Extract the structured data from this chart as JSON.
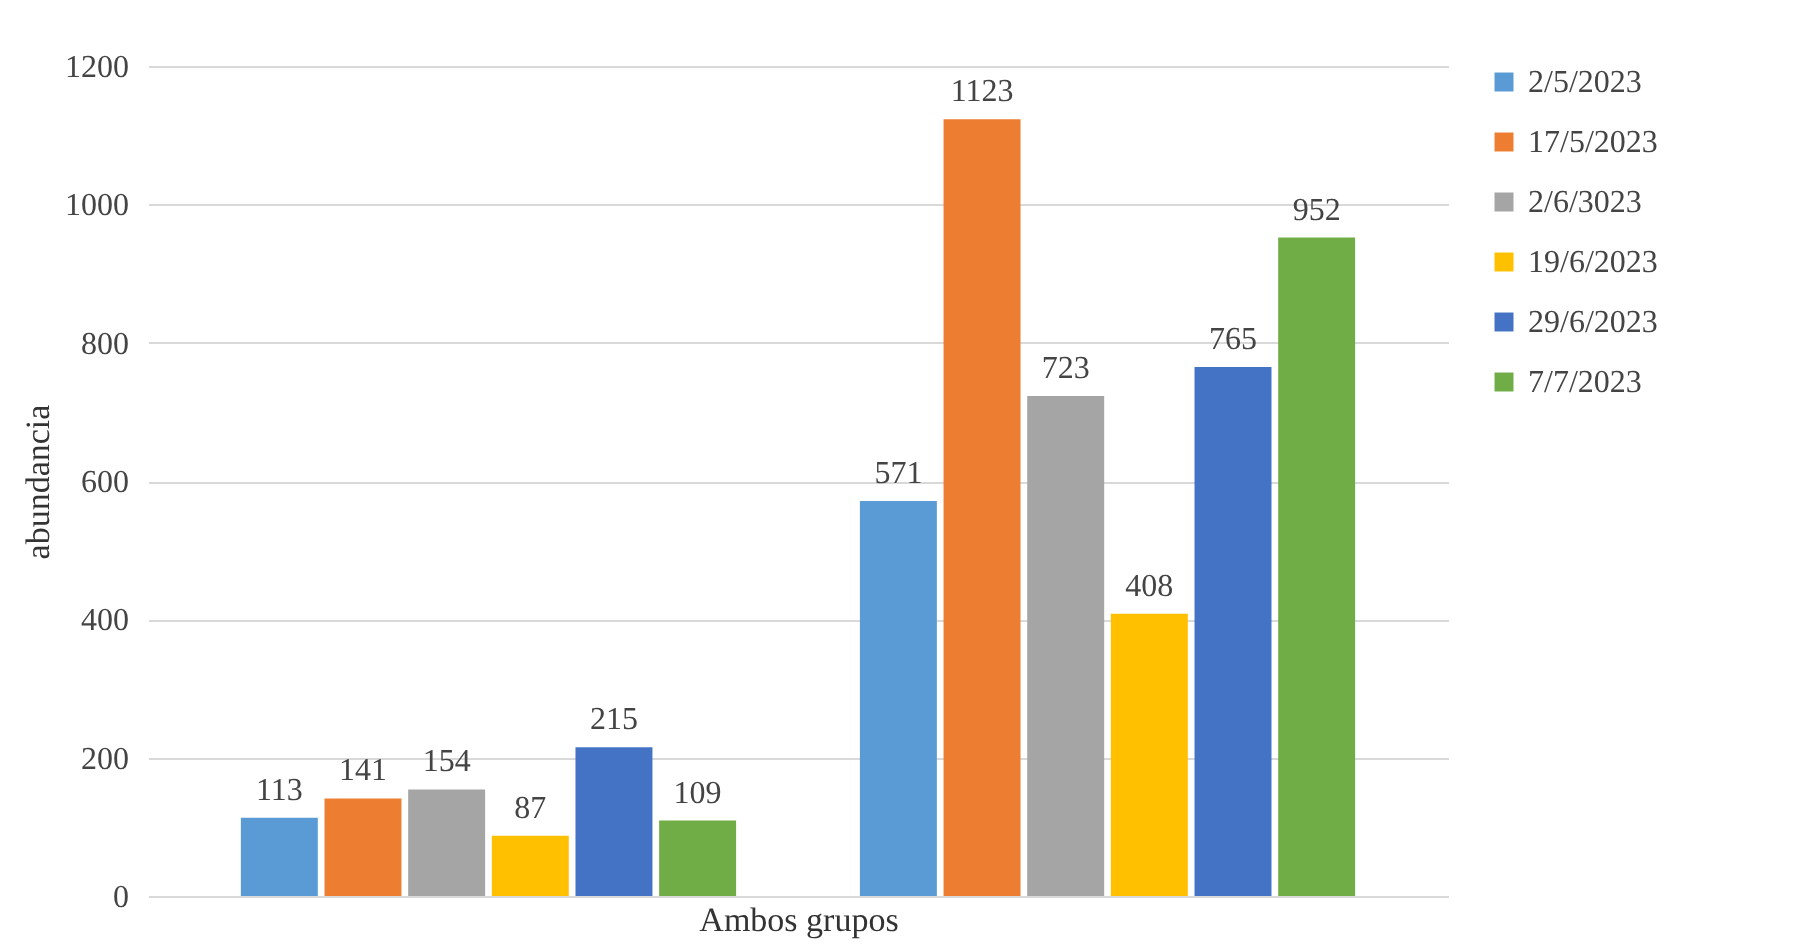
{
  "chart_data": {
    "type": "bar",
    "xlabel": "Ambos grupos",
    "ylabel": "abundancia",
    "categories": [
      null,
      null
    ],
    "series": [
      {
        "name": "2/5/2023",
        "color": "#5b9bd5",
        "values": [
          113,
          571
        ]
      },
      {
        "name": "17/5/2023",
        "color": "#ed7d31",
        "values": [
          141,
          1123
        ]
      },
      {
        "name": "2/6/3023",
        "color": "#a5a5a5",
        "values": [
          154,
          723
        ]
      },
      {
        "name": "19/6/2023",
        "color": "#ffc000",
        "values": [
          87,
          408
        ]
      },
      {
        "name": "29/6/2023",
        "color": "#4472c4",
        "values": [
          215,
          765
        ]
      },
      {
        "name": "7/7/2023",
        "color": "#70ad47",
        "values": [
          109,
          952
        ]
      }
    ],
    "ylim": [
      0,
      1200
    ],
    "yticks": [
      0,
      200,
      400,
      600,
      800,
      1000,
      1200
    ],
    "grid": "y",
    "legend": "right",
    "data_labels": true
  }
}
